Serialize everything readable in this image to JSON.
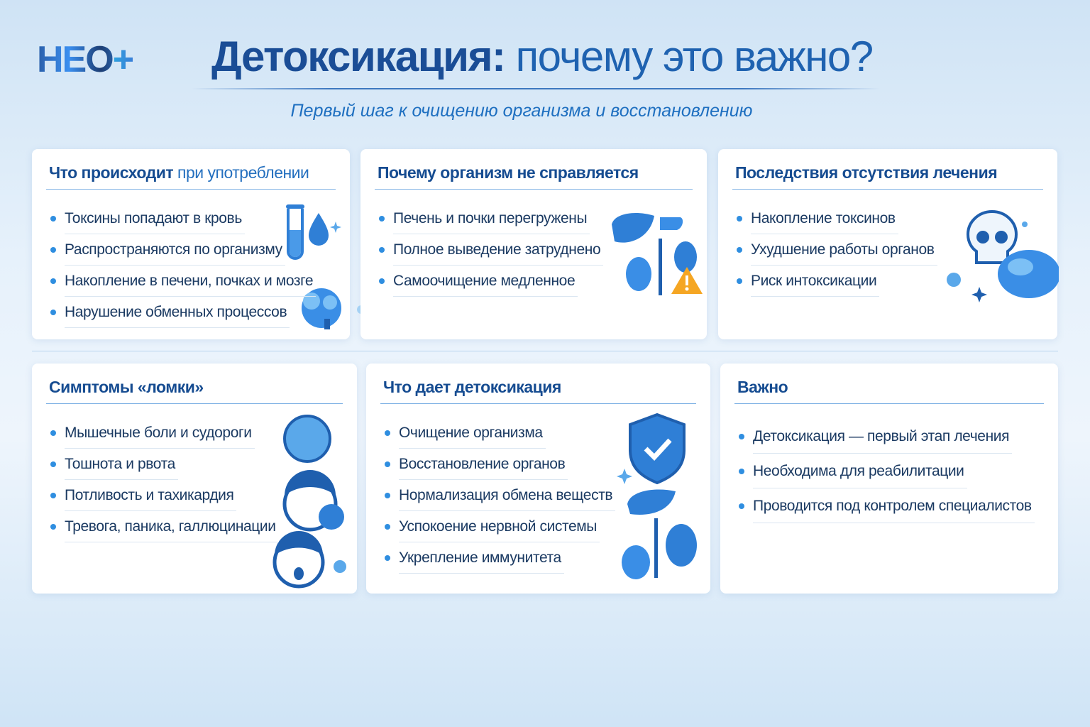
{
  "logo": {
    "text": "НЕО",
    "plus": "+"
  },
  "header": {
    "title_bold": "Детоксикация:",
    "title_rest": " почему это важно?",
    "subtitle": "Первый шаг к очищению организма и восстановлению"
  },
  "colors": {
    "primary": "#164c91",
    "accent": "#2f8ee0",
    "warning": "#f5a623"
  },
  "cards": [
    {
      "title_bold": "Что происходит",
      "title_light": " при употреблении",
      "icons": [
        "test-tube-icon",
        "drop-icon",
        "brain-icon"
      ],
      "items": [
        "Токсины попадают в кровь",
        "Распространяются по организму",
        "Накопление в печени, почках и мозге",
        "Нарушение обменных процессов"
      ]
    },
    {
      "title_bold": "Почему организм не справляется",
      "icons": [
        "liver-icon",
        "kidney-icon",
        "warning-icon"
      ],
      "items": [
        "Печень и почки перегружены",
        "Полное выведение затруднено",
        "Самоочищение медленное"
      ]
    },
    {
      "title_bold": "Последствия отсутствия лечения",
      "icons": [
        "skull-icon",
        "brain-icon"
      ],
      "items": [
        "Накопление токсинов",
        "Ухудшение работы органов",
        "Риск интоксикации"
      ]
    },
    {
      "title_bold": "Симптомы «ломки»",
      "icons": [
        "sick-face-icon",
        "sweating-face-icon",
        "anxious-face-icon"
      ],
      "items": [
        "Мышечные боли и судороги",
        "Тошнота и рвота",
        "Потливость и тахикардия",
        "Тревога, паника, галлюцинации"
      ]
    },
    {
      "title_bold": "Что дает детоксикация",
      "icons": [
        "shield-check-icon",
        "liver-icon",
        "kidney-icon"
      ],
      "items": [
        "Очищение организма",
        "Восстановление органов",
        "Нормализация обмена веществ",
        "Успокоение нервной системы",
        "Укрепление иммунитета"
      ]
    },
    {
      "title_bold": "Важно",
      "icons": [],
      "items": [
        "Детоксикация — первый этап лечения",
        "Необходима для реабилитации",
        "Проводится под контролем специалистов"
      ]
    }
  ]
}
